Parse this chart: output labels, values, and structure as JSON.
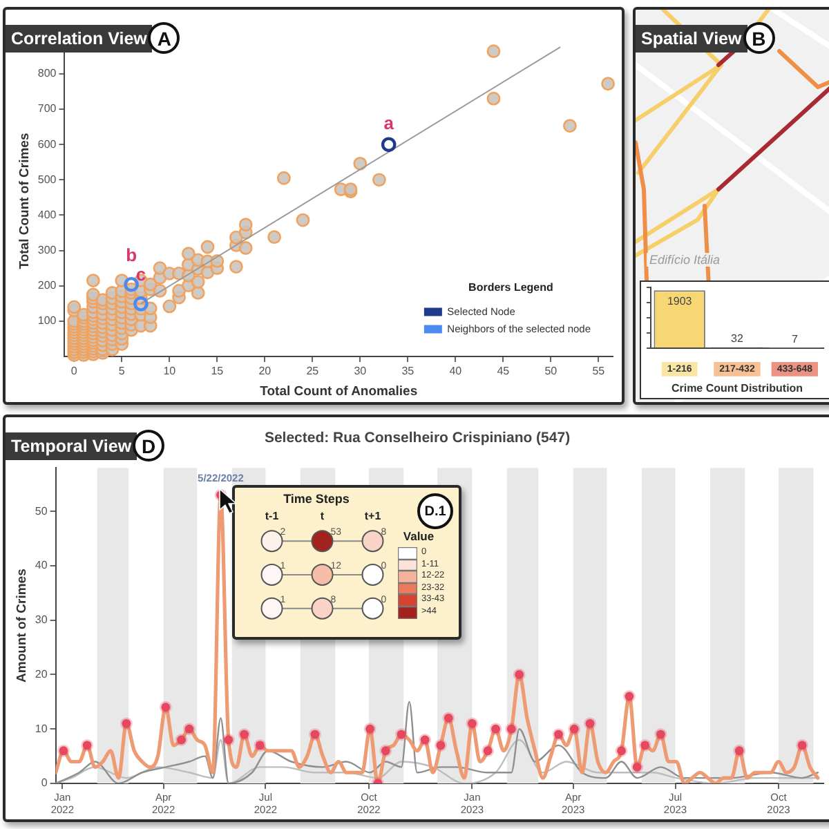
{
  "chart_data": [
    {
      "type": "scatter",
      "title": "Correlation View",
      "xlabel": "Total Count of Anomalies",
      "ylabel": "Total Count of Crimes",
      "annotations": [
        "A",
        {
          "text": "a",
          "x": 33,
          "y": 600
        },
        {
          "text": "b",
          "x": 6,
          "y": 204
        },
        {
          "text": "c",
          "x": 7,
          "y": 149
        }
      ],
      "xlim": [
        -1,
        56.5
      ],
      "ylim": [
        0,
        880
      ],
      "xticks": [
        0,
        5,
        10,
        15,
        20,
        25,
        30,
        35,
        40,
        45,
        50,
        55
      ],
      "yticks": [
        100,
        200,
        300,
        400,
        500,
        600,
        700,
        800
      ],
      "legend": "bottom right",
      "legend_title": "Borders Legend",
      "series": [
        {
          "color": "#f0a25e",
          "x": [
            0,
            0,
            0,
            0,
            0,
            0,
            0,
            0,
            0,
            0,
            0,
            0,
            0,
            0,
            0,
            1,
            1,
            1,
            1,
            1,
            1,
            1,
            1,
            1,
            1,
            1,
            1,
            1,
            1,
            1,
            2,
            2,
            2,
            2,
            2,
            2,
            2,
            2,
            2,
            2,
            2,
            2,
            2,
            2,
            2,
            2,
            2,
            2,
            2,
            3,
            3,
            3,
            3,
            3,
            3,
            3,
            3,
            3,
            3,
            3,
            3,
            3,
            4,
            4,
            4,
            4,
            4,
            4,
            4,
            4,
            4,
            4,
            4,
            4,
            5,
            5,
            5,
            5,
            5,
            5,
            5,
            5,
            5,
            5,
            5,
            5,
            6,
            6,
            6,
            6,
            6,
            6,
            6,
            6,
            6,
            7,
            7,
            7,
            7,
            7,
            7,
            8,
            8,
            8,
            8,
            8,
            9,
            9,
            9,
            10,
            10,
            11,
            11,
            11,
            12,
            12,
            12,
            12,
            13,
            13,
            13,
            13,
            14,
            14,
            14,
            15,
            15,
            17,
            17,
            17,
            18,
            18,
            18,
            21,
            22,
            24,
            28,
            29,
            29,
            30,
            32,
            44,
            44,
            52,
            56
          ],
          "values": [
            4,
            12,
            20,
            28,
            36,
            44,
            52,
            60,
            68,
            76,
            84,
            92,
            100,
            130,
            140,
            4,
            12,
            20,
            28,
            36,
            44,
            52,
            60,
            68,
            76,
            84,
            92,
            100,
            110,
            118,
            6,
            14,
            22,
            30,
            38,
            46,
            55,
            65,
            75,
            85,
            95,
            105,
            115,
            125,
            140,
            155,
            165,
            175,
            215,
            10,
            20,
            32,
            45,
            58,
            70,
            82,
            95,
            108,
            120,
            135,
            150,
            160,
            20,
            35,
            48,
            60,
            75,
            90,
            105,
            120,
            135,
            150,
            165,
            180,
            35,
            50,
            65,
            80,
            95,
            110,
            125,
            140,
            155,
            170,
            185,
            215,
            75,
            90,
            105,
            120,
            135,
            150,
            165,
            180,
            190,
            87,
            118,
            135,
            165,
            185,
            215,
            87,
            111,
            136,
            190,
            204,
            186,
            223,
            250,
            142,
            235,
            167,
            186,
            235,
            201,
            229,
            260,
            291,
            180,
            211,
            248,
            273,
            238,
            269,
            310,
            250,
            270,
            254,
            315,
            337,
            307,
            351,
            373,
            338,
            505,
            386,
            473,
            467,
            473,
            546,
            500,
            730,
            864,
            653,
            772
          ]
        },
        {
          "name": "Selected Node",
          "color": "#1f3a8a",
          "x": [
            33
          ],
          "values": [
            600
          ]
        },
        {
          "name": "Neighbors of the selected node",
          "color": "#4d8af0",
          "x": [
            6,
            7
          ],
          "values": [
            204,
            149
          ]
        },
        {
          "type": "line",
          "color": "#9a9a9a",
          "x": [
            7,
            51
          ],
          "values": [
            150,
            876
          ]
        }
      ]
    },
    {
      "type": "bar",
      "title": "Spatial View",
      "xlabel": "Crime Count Distribution",
      "annotations": [
        "B",
        "Edifício Itália"
      ],
      "categories": [
        "1-216",
        "217-432",
        "433-648"
      ],
      "values": [
        1903,
        32,
        7
      ],
      "colors": [
        "#f7d774",
        "#f2a05a",
        "#e2583e"
      ],
      "data_labels": true,
      "tick_labels": "x"
    },
    {
      "type": "line",
      "title": "Temporal View",
      "subtitle": "Selected: Rua Conselheiro Crispiniano (547)",
      "ylabel": "Amount of Crimes",
      "annotations": [
        "D",
        {
          "text": "5/22/2022",
          "x": "2022-05-22",
          "y": 53
        }
      ],
      "xlim": [
        "2021-12-26",
        "2023-11-10"
      ],
      "xticks": [
        {
          "value": "2022-01-01",
          "label": "Jan 2022"
        },
        {
          "value": "2022-04-01",
          "label": "Apr 2022"
        },
        {
          "value": "2022-07-01",
          "label": "Jul 2022"
        },
        {
          "value": "2022-10-01",
          "label": "Oct 2022"
        },
        {
          "value": "2023-01-01",
          "label": "Jan 2023"
        },
        {
          "value": "2023-04-01",
          "label": "Apr 2023"
        },
        {
          "value": "2023-07-01",
          "label": "Jul 2023"
        },
        {
          "value": "2023-10-01",
          "label": "Oct 2023"
        }
      ],
      "ylim": [
        0,
        58
      ],
      "yticks": [
        0,
        10,
        20,
        30,
        40,
        50
      ],
      "bands": [
        {
          "axis": "x",
          "from": "2022-02-01",
          "to": "2022-03-01",
          "color": "#e8e8e8"
        },
        {
          "axis": "x",
          "from": "2022-04-01",
          "to": "2022-05-01",
          "color": "#e8e8e8"
        },
        {
          "axis": "x",
          "from": "2022-06-01",
          "to": "2022-07-01",
          "color": "#e8e8e8"
        },
        {
          "axis": "x",
          "from": "2022-08-01",
          "to": "2022-09-01",
          "color": "#e8e8e8"
        },
        {
          "axis": "x",
          "from": "2022-10-01",
          "to": "2022-11-01",
          "color": "#e8e8e8"
        },
        {
          "axis": "x",
          "from": "2022-12-01",
          "to": "2023-01-01",
          "color": "#e8e8e8"
        },
        {
          "axis": "x",
          "from": "2023-02-01",
          "to": "2023-03-01",
          "color": "#e8e8e8"
        },
        {
          "axis": "x",
          "from": "2023-04-01",
          "to": "2023-05-01",
          "color": "#e8e8e8"
        },
        {
          "axis": "x",
          "from": "2023-06-01",
          "to": "2023-07-01",
          "color": "#e8e8e8"
        },
        {
          "axis": "x",
          "from": "2023-08-01",
          "to": "2023-09-01",
          "color": "#e8e8e8"
        },
        {
          "axis": "x",
          "from": "2023-10-01",
          "to": "2023-11-01",
          "color": "#e8e8e8"
        }
      ],
      "series": [
        {
          "color": "#ee9a72",
          "x": [
            "2021-12-26",
            "2022-01-02",
            "2022-01-09",
            "2022-01-16",
            "2022-01-23",
            "2022-01-30",
            "2022-02-06",
            "2022-02-13",
            "2022-02-20",
            "2022-02-27",
            "2022-03-06",
            "2022-03-13",
            "2022-03-20",
            "2022-03-27",
            "2022-04-03",
            "2022-04-10",
            "2022-04-17",
            "2022-04-24",
            "2022-05-01",
            "2022-05-08",
            "2022-05-15",
            "2022-05-22",
            "2022-05-29",
            "2022-06-05",
            "2022-06-12",
            "2022-06-19",
            "2022-06-26",
            "2022-07-03",
            "2022-07-10",
            "2022-07-17",
            "2022-07-24",
            "2022-07-31",
            "2022-08-07",
            "2022-08-14",
            "2022-08-21",
            "2022-08-28",
            "2022-09-04",
            "2022-09-11",
            "2022-09-18",
            "2022-09-25",
            "2022-10-02",
            "2022-10-09",
            "2022-10-16",
            "2022-10-23",
            "2022-10-30",
            "2022-11-06",
            "2022-11-13",
            "2022-11-20",
            "2022-11-27",
            "2022-12-04",
            "2022-12-11",
            "2022-12-18",
            "2022-12-25",
            "2023-01-01",
            "2023-01-08",
            "2023-01-15",
            "2023-01-22",
            "2023-01-29",
            "2023-02-05",
            "2023-02-12",
            "2023-02-19",
            "2023-02-26",
            "2023-03-05",
            "2023-03-12",
            "2023-03-19",
            "2023-03-26",
            "2023-04-02",
            "2023-04-09",
            "2023-04-16",
            "2023-04-23",
            "2023-04-30",
            "2023-05-07",
            "2023-05-14",
            "2023-05-21",
            "2023-05-28",
            "2023-06-04",
            "2023-06-11",
            "2023-06-18",
            "2023-06-25",
            "2023-07-02",
            "2023-07-09",
            "2023-07-16",
            "2023-07-23",
            "2023-07-30",
            "2023-08-06",
            "2023-08-13",
            "2023-08-20",
            "2023-08-27",
            "2023-09-03",
            "2023-09-10",
            "2023-09-17",
            "2023-09-24",
            "2023-10-01",
            "2023-10-08",
            "2023-10-15",
            "2023-10-22",
            "2023-10-29",
            "2023-11-05"
          ],
          "values": [
            2,
            6,
            4,
            4,
            7,
            3,
            4,
            6,
            1,
            11,
            6,
            4,
            3,
            5,
            14,
            7,
            8,
            10,
            8,
            7,
            2,
            53,
            8,
            3,
            9,
            5,
            7,
            6,
            6,
            6,
            6,
            3,
            5,
            9,
            5,
            2,
            4,
            2,
            2,
            2,
            10,
            0,
            6,
            7,
            9,
            8,
            6,
            8,
            2,
            7,
            12,
            6,
            1,
            11,
            4,
            6,
            10,
            6,
            10,
            20,
            12,
            6,
            1,
            5,
            9,
            7,
            10,
            2,
            11,
            4,
            2,
            4,
            6,
            16,
            3,
            7,
            6,
            9,
            4,
            4,
            0,
            1,
            2,
            1,
            0,
            1,
            1,
            6,
            1,
            2,
            2,
            2,
            4,
            2,
            3,
            7,
            3,
            1
          ]
        },
        {
          "type": "scatter",
          "color": "#e5485f",
          "x": [
            "2022-01-02",
            "2022-01-23",
            "2022-02-27",
            "2022-04-03",
            "2022-04-17",
            "2022-04-24",
            "2022-05-22",
            "2022-05-29",
            "2022-06-12",
            "2022-06-26",
            "2022-08-14",
            "2022-10-02",
            "2022-10-09",
            "2022-10-16",
            "2022-10-30",
            "2022-11-20",
            "2022-12-04",
            "2022-12-11",
            "2023-01-01",
            "2023-01-15",
            "2023-01-22",
            "2023-02-05",
            "2023-02-12",
            "2023-03-19",
            "2023-04-02",
            "2023-04-16",
            "2023-05-14",
            "2023-05-21",
            "2023-05-28",
            "2023-06-04",
            "2023-06-18",
            "2023-08-27",
            "2023-10-22"
          ],
          "values": [
            6,
            7,
            11,
            14,
            8,
            10,
            53,
            8,
            9,
            7,
            9,
            10,
            0,
            6,
            9,
            8,
            7,
            12,
            11,
            6,
            10,
            10,
            20,
            9,
            10,
            11,
            6,
            16,
            3,
            7,
            9,
            6,
            7
          ]
        },
        {
          "color": "#8f8f8f",
          "x": [
            "2021-12-26",
            "2022-01-16",
            "2022-01-30",
            "2022-02-20",
            "2022-03-13",
            "2022-04-03",
            "2022-04-24",
            "2022-05-08",
            "2022-05-15",
            "2022-05-22",
            "2022-05-29",
            "2022-06-19",
            "2022-07-03",
            "2022-07-24",
            "2022-08-21",
            "2022-09-11",
            "2022-10-02",
            "2022-10-16",
            "2022-10-30",
            "2022-11-06",
            "2022-11-13",
            "2022-12-04",
            "2022-12-18",
            "2023-01-15",
            "2023-02-05",
            "2023-02-12",
            "2023-02-26",
            "2023-03-19",
            "2023-04-09",
            "2023-04-30",
            "2023-05-14",
            "2023-05-28",
            "2023-06-18",
            "2023-07-09",
            "2023-08-20",
            "2023-09-24",
            "2023-10-22",
            "2023-11-05"
          ],
          "values": [
            0,
            2,
            4,
            0,
            2,
            3,
            4,
            5,
            1,
            12,
            0,
            2,
            6,
            4,
            3,
            4,
            2,
            4,
            3,
            15,
            2,
            3,
            3,
            2,
            2,
            10,
            4,
            7,
            2,
            1,
            4,
            1,
            3,
            1,
            1,
            2,
            1,
            2
          ]
        },
        {
          "color": "#bdbdbd",
          "x": [
            "2021-12-26",
            "2022-01-09",
            "2022-01-30",
            "2022-02-27",
            "2022-03-27",
            "2022-04-24",
            "2022-05-15",
            "2022-05-22",
            "2022-05-29",
            "2022-06-26",
            "2022-07-17",
            "2022-08-14",
            "2022-09-11",
            "2022-10-09",
            "2022-10-30",
            "2022-11-27",
            "2022-12-25",
            "2023-01-22",
            "2023-02-12",
            "2023-03-05",
            "2023-03-26",
            "2023-04-23",
            "2023-05-21",
            "2023-06-11",
            "2023-07-02",
            "2023-08-06",
            "2023-09-10",
            "2023-10-08",
            "2023-11-05"
          ],
          "values": [
            0,
            1,
            3,
            1,
            3,
            2,
            1,
            8,
            0,
            3,
            3,
            2,
            2,
            1,
            4,
            3,
            0,
            2,
            8,
            2,
            4,
            2,
            2,
            2,
            1,
            0,
            1,
            1,
            1
          ]
        }
      ]
    },
    {
      "type": "other",
      "title": "Time Steps",
      "annotations": [
        "D.1",
        "0",
        "1-11",
        "12-22",
        "23-32",
        "33-43",
        ">44"
      ],
      "categories": [
        "t-1",
        "t",
        "t+1"
      ],
      "series": [
        {
          "values": [
            2,
            53,
            8
          ]
        },
        {
          "values": [
            1,
            12,
            0
          ]
        },
        {
          "values": [
            1,
            8,
            0
          ]
        }
      ],
      "data_labels": true,
      "legend_title": "Value"
    }
  ]
}
